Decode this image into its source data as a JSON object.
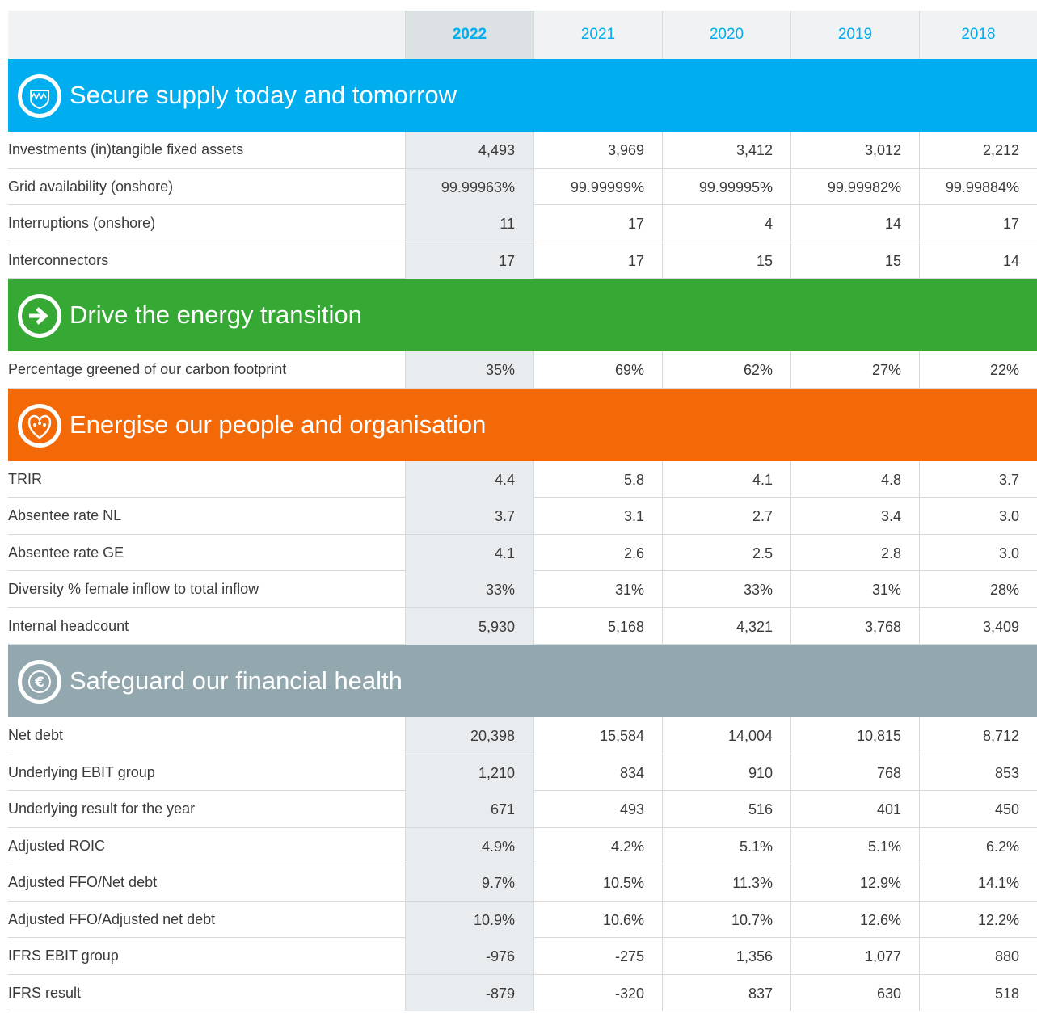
{
  "header": {
    "columns": [
      "2022",
      "2021",
      "2020",
      "2019",
      "2018"
    ]
  },
  "sections": [
    {
      "title": "Secure supply today and tomorrow",
      "color": "#00aeef",
      "icon": "wave",
      "rows": [
        {
          "label": "Investments (in)tangible fixed assets",
          "values": [
            "4,493",
            "3,969",
            "3,412",
            "3,012",
            "2,212"
          ]
        },
        {
          "label": "Grid availability (onshore)",
          "values": [
            "99.99963%",
            "99.99999%",
            "99.99995%",
            "99.99982%",
            "99.99884%"
          ]
        },
        {
          "label": "Interruptions (onshore)",
          "values": [
            "11",
            "17",
            "4",
            "14",
            "17"
          ]
        },
        {
          "label": "Interconnectors",
          "values": [
            "17",
            "17",
            "15",
            "15",
            "14"
          ]
        }
      ]
    },
    {
      "title": "Drive the energy transition",
      "color": "#36a935",
      "icon": "arrow",
      "rows": [
        {
          "label": "Percentage greened of our carbon footprint",
          "values": [
            "35%",
            "69%",
            "62%",
            "27%",
            "22%"
          ]
        }
      ]
    },
    {
      "title": "Energise our people and organisation",
      "color": "#f36807",
      "icon": "heart",
      "rows": [
        {
          "label": "TRIR",
          "values": [
            "4.4",
            "5.8",
            "4.1",
            "4.8",
            "3.7"
          ]
        },
        {
          "label": "Absentee rate NL",
          "values": [
            "3.7",
            "3.1",
            "2.7",
            "3.4",
            "3.0"
          ]
        },
        {
          "label": "Absentee rate GE",
          "values": [
            "4.1",
            "2.6",
            "2.5",
            "2.8",
            "3.0"
          ]
        },
        {
          "label": "Diversity % female inflow to total inflow",
          "values": [
            "33%",
            "31%",
            "33%",
            "31%",
            "28%"
          ]
        },
        {
          "label": "Internal headcount",
          "values": [
            "5,930",
            "5,168",
            "4,321",
            "3,768",
            "3,409"
          ]
        }
      ]
    },
    {
      "title": "Safeguard our financial health",
      "color": "#93a7af",
      "icon": "euro",
      "rows": [
        {
          "label": "Net debt",
          "values": [
            "20,398",
            "15,584",
            "14,004",
            "10,815",
            "8,712"
          ]
        },
        {
          "label": "Underlying EBIT group",
          "values": [
            "1,210",
            "834",
            "910",
            "768",
            "853"
          ]
        },
        {
          "label": "Underlying result for the year",
          "values": [
            "671",
            "493",
            "516",
            "401",
            "450"
          ]
        },
        {
          "label": "Adjusted ROIC",
          "values": [
            "4.9%",
            "4.2%",
            "5.1%",
            "5.1%",
            "6.2%"
          ]
        },
        {
          "label": "Adjusted FFO/Net debt",
          "values": [
            "9.7%",
            "10.5%",
            "11.3%",
            "12.9%",
            "14.1%"
          ]
        },
        {
          "label": "Adjusted FFO/Adjusted net debt",
          "values": [
            "10.9%",
            "10.6%",
            "10.7%",
            "12.6%",
            "12.2%"
          ]
        },
        {
          "label": "IFRS EBIT group",
          "values": [
            "-976",
            "-275",
            "1,356",
            "1,077",
            "880"
          ]
        },
        {
          "label": "IFRS result",
          "values": [
            "-879",
            "-320",
            "837",
            "630",
            "518"
          ]
        }
      ]
    }
  ]
}
